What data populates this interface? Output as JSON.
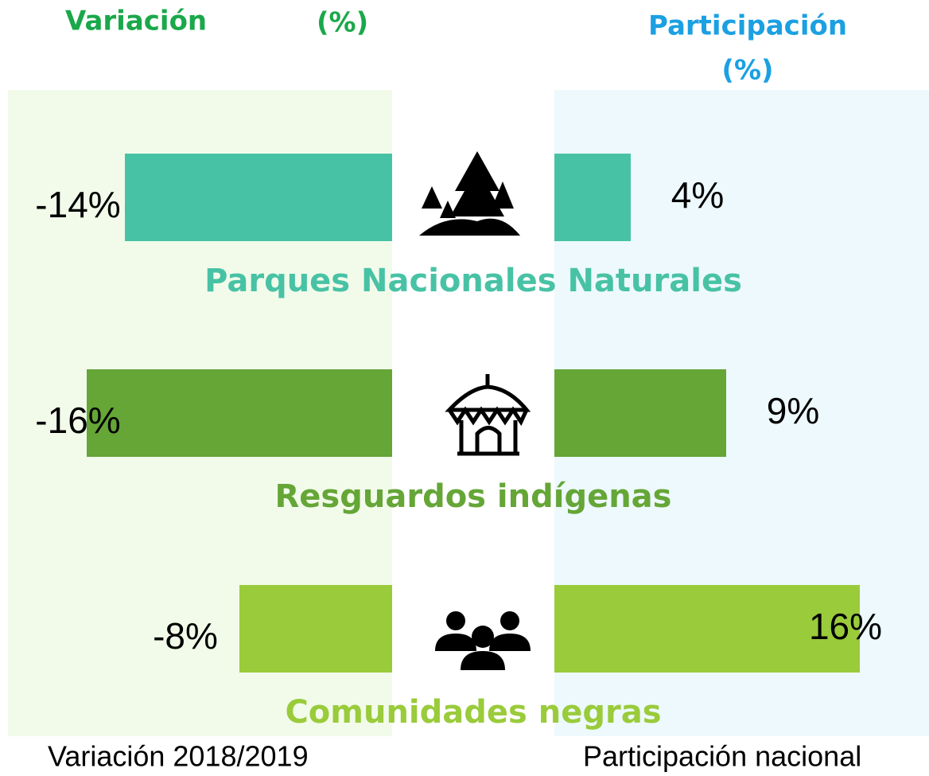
{
  "chart_data": {
    "type": "diverging-bar",
    "left_header": [
      "Variación",
      "(%)"
    ],
    "right_header": [
      "Participación",
      "(%)"
    ],
    "left_footer": "Variación 2018/2019",
    "right_footer": "Participación nacional",
    "categories": [
      "Parques Nacionales Naturales",
      "Resguardos indígenas",
      "Comunidades negras"
    ],
    "colors": [
      "#48c2a5",
      "#65a637",
      "#9acb3b"
    ],
    "series": [
      {
        "name": "Variación 2018/2019",
        "values": [
          -14,
          -16,
          -8
        ],
        "value_labels": [
          "-14%",
          "-16%",
          "-8%"
        ]
      },
      {
        "name": "Participación nacional",
        "values": [
          4,
          9,
          16
        ],
        "value_labels": [
          "4%",
          "9%",
          "16%"
        ]
      }
    ]
  }
}
